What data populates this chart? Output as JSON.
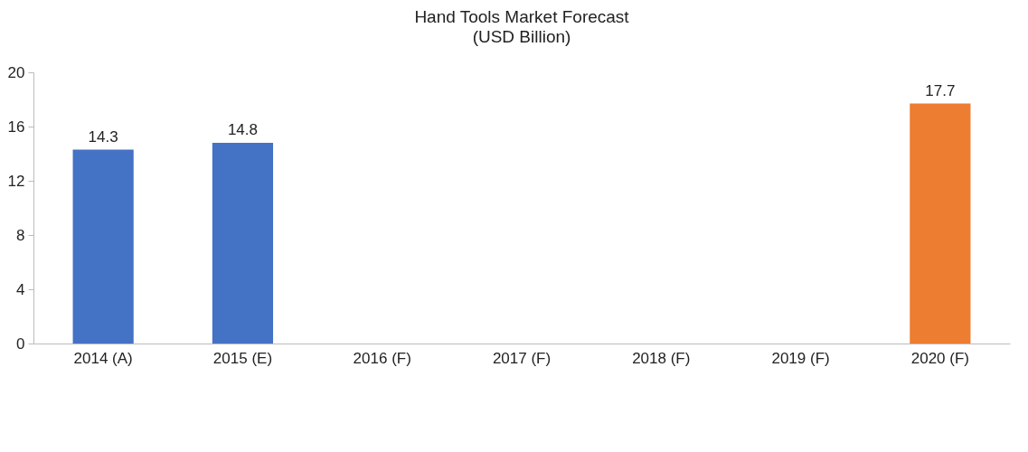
{
  "chart_data": {
    "type": "bar",
    "title": "Hand Tools Market Forecast",
    "subtitle": "(USD Billion)",
    "categories": [
      "2014 (A)",
      "2015 (E)",
      "2016 (F)",
      "2017 (F)",
      "2018 (F)",
      "2019 (F)",
      "2020 (F)"
    ],
    "values": [
      14.3,
      14.8,
      null,
      null,
      null,
      null,
      17.7
    ],
    "colors": [
      "#4472c4",
      "#4472c4",
      "#4472c4",
      "#4472c4",
      "#4472c4",
      "#4472c4",
      "#ed7d31"
    ],
    "ylim": [
      0,
      20
    ],
    "yticks": [
      0,
      4,
      8,
      12,
      16,
      20
    ],
    "data_labels": true
  }
}
